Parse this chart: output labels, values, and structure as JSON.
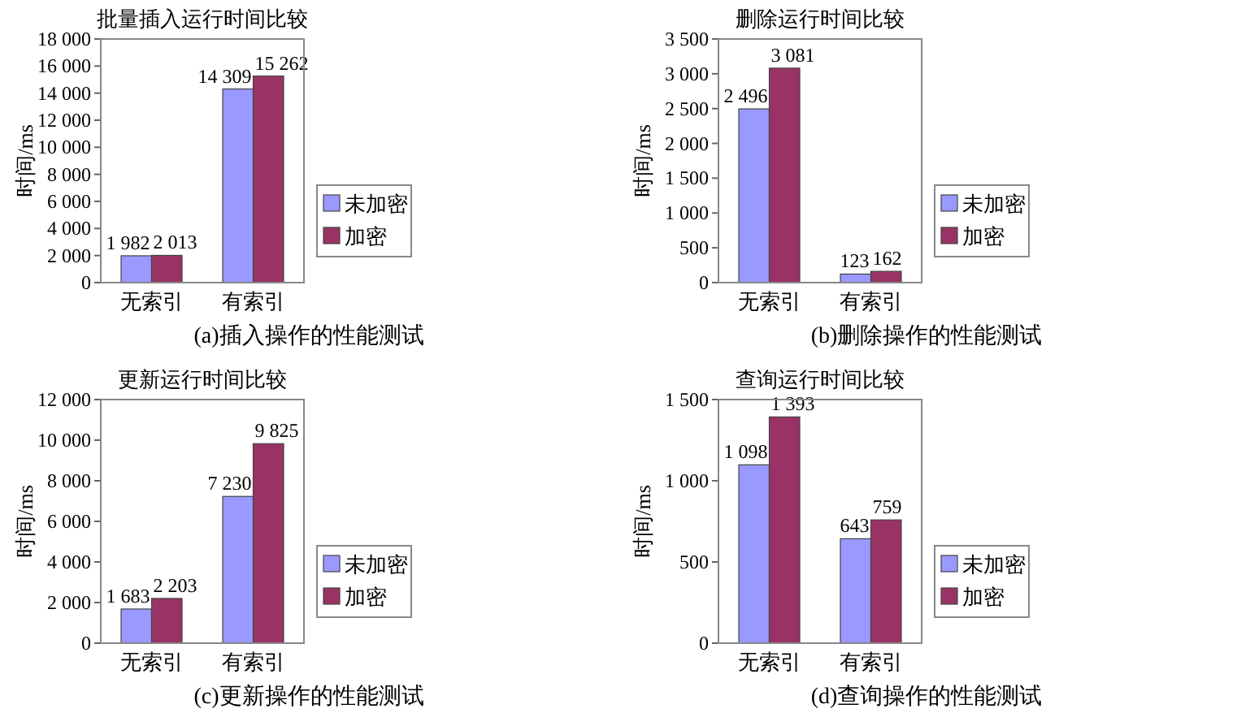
{
  "chart_data": [
    {
      "type": "bar",
      "title": "批量插入运行时间比较",
      "ylabel": "时间/ms",
      "categories": [
        "无索引",
        "有索引"
      ],
      "legend": "right",
      "grid": false,
      "ylim": [
        0,
        18000
      ],
      "yticks": [
        {
          "value": 0,
          "label": "0"
        },
        {
          "value": 2000,
          "label": "2 000"
        },
        {
          "value": 4000,
          "label": "4 000"
        },
        {
          "value": 6000,
          "label": "6 000"
        },
        {
          "value": 8000,
          "label": "8 000"
        },
        {
          "value": 10000,
          "label": "10 000"
        },
        {
          "value": 12000,
          "label": "12 000"
        },
        {
          "value": 14000,
          "label": "14 000"
        },
        {
          "value": 16000,
          "label": "16 000"
        },
        {
          "value": 18000,
          "label": "18 000"
        }
      ],
      "series": [
        {
          "name": "未加密",
          "color": "#9999ff",
          "values": [
            1982,
            14309
          ],
          "value_labels": [
            "1 982",
            "14 309"
          ]
        },
        {
          "name": "加密",
          "color": "#993366",
          "values": [
            2013,
            15262
          ],
          "value_labels": [
            "2 013",
            "15 262"
          ]
        }
      ],
      "annotations": [
        "(a)插入操作的性能测试"
      ]
    },
    {
      "type": "bar",
      "title": "删除运行时间比较",
      "ylabel": "时间/ms",
      "categories": [
        "无索引",
        "有索引"
      ],
      "legend": "right",
      "grid": false,
      "ylim": [
        0,
        3500
      ],
      "yticks": [
        {
          "value": 0,
          "label": "0"
        },
        {
          "value": 500,
          "label": "500"
        },
        {
          "value": 1000,
          "label": "1 000"
        },
        {
          "value": 1500,
          "label": "1 500"
        },
        {
          "value": 2000,
          "label": "2 000"
        },
        {
          "value": 2500,
          "label": "2 500"
        },
        {
          "value": 3000,
          "label": "3 000"
        },
        {
          "value": 3500,
          "label": "3 500"
        }
      ],
      "series": [
        {
          "name": "未加密",
          "color": "#9999ff",
          "values": [
            2496,
            123
          ],
          "value_labels": [
            "2 496",
            "123"
          ]
        },
        {
          "name": "加密",
          "color": "#993366",
          "values": [
            3081,
            162
          ],
          "value_labels": [
            "3 081",
            "162"
          ]
        }
      ],
      "annotations": [
        "(b)删除操作的性能测试"
      ]
    },
    {
      "type": "bar",
      "title": "更新运行时间比较",
      "ylabel": "时间/ms",
      "categories": [
        "无索引",
        "有索引"
      ],
      "legend": "right",
      "grid": false,
      "ylim": [
        0,
        12000
      ],
      "yticks": [
        {
          "value": 0,
          "label": "0"
        },
        {
          "value": 2000,
          "label": "2 000"
        },
        {
          "value": 4000,
          "label": "4 000"
        },
        {
          "value": 6000,
          "label": "6 000"
        },
        {
          "value": 8000,
          "label": "8 000"
        },
        {
          "value": 10000,
          "label": "10 000"
        },
        {
          "value": 12000,
          "label": "12 000"
        }
      ],
      "series": [
        {
          "name": "未加密",
          "color": "#9999ff",
          "values": [
            1683,
            7230
          ],
          "value_labels": [
            "1 683",
            "7 230"
          ]
        },
        {
          "name": "加密",
          "color": "#993366",
          "values": [
            2203,
            9825
          ],
          "value_labels": [
            "2 203",
            "9 825"
          ]
        }
      ],
      "annotations": [
        "(c)更新操作的性能测试"
      ]
    },
    {
      "type": "bar",
      "title": "查询运行时间比较",
      "ylabel": "时间/ms",
      "categories": [
        "无索引",
        "有索引"
      ],
      "legend": "right",
      "grid": false,
      "ylim": [
        0,
        1500
      ],
      "yticks": [
        {
          "value": 0,
          "label": "0"
        },
        {
          "value": 500,
          "label": "500"
        },
        {
          "value": 1000,
          "label": "1 000"
        },
        {
          "value": 1500,
          "label": "1 500"
        }
      ],
      "series": [
        {
          "name": "未加密",
          "color": "#9999ff",
          "values": [
            1098,
            643
          ],
          "value_labels": [
            "1 098",
            "643"
          ]
        },
        {
          "name": "加密",
          "color": "#993366",
          "values": [
            1393,
            759
          ],
          "value_labels": [
            "1 393",
            "759"
          ]
        }
      ],
      "annotations": [
        "(d)查询操作的性能测试"
      ]
    }
  ]
}
